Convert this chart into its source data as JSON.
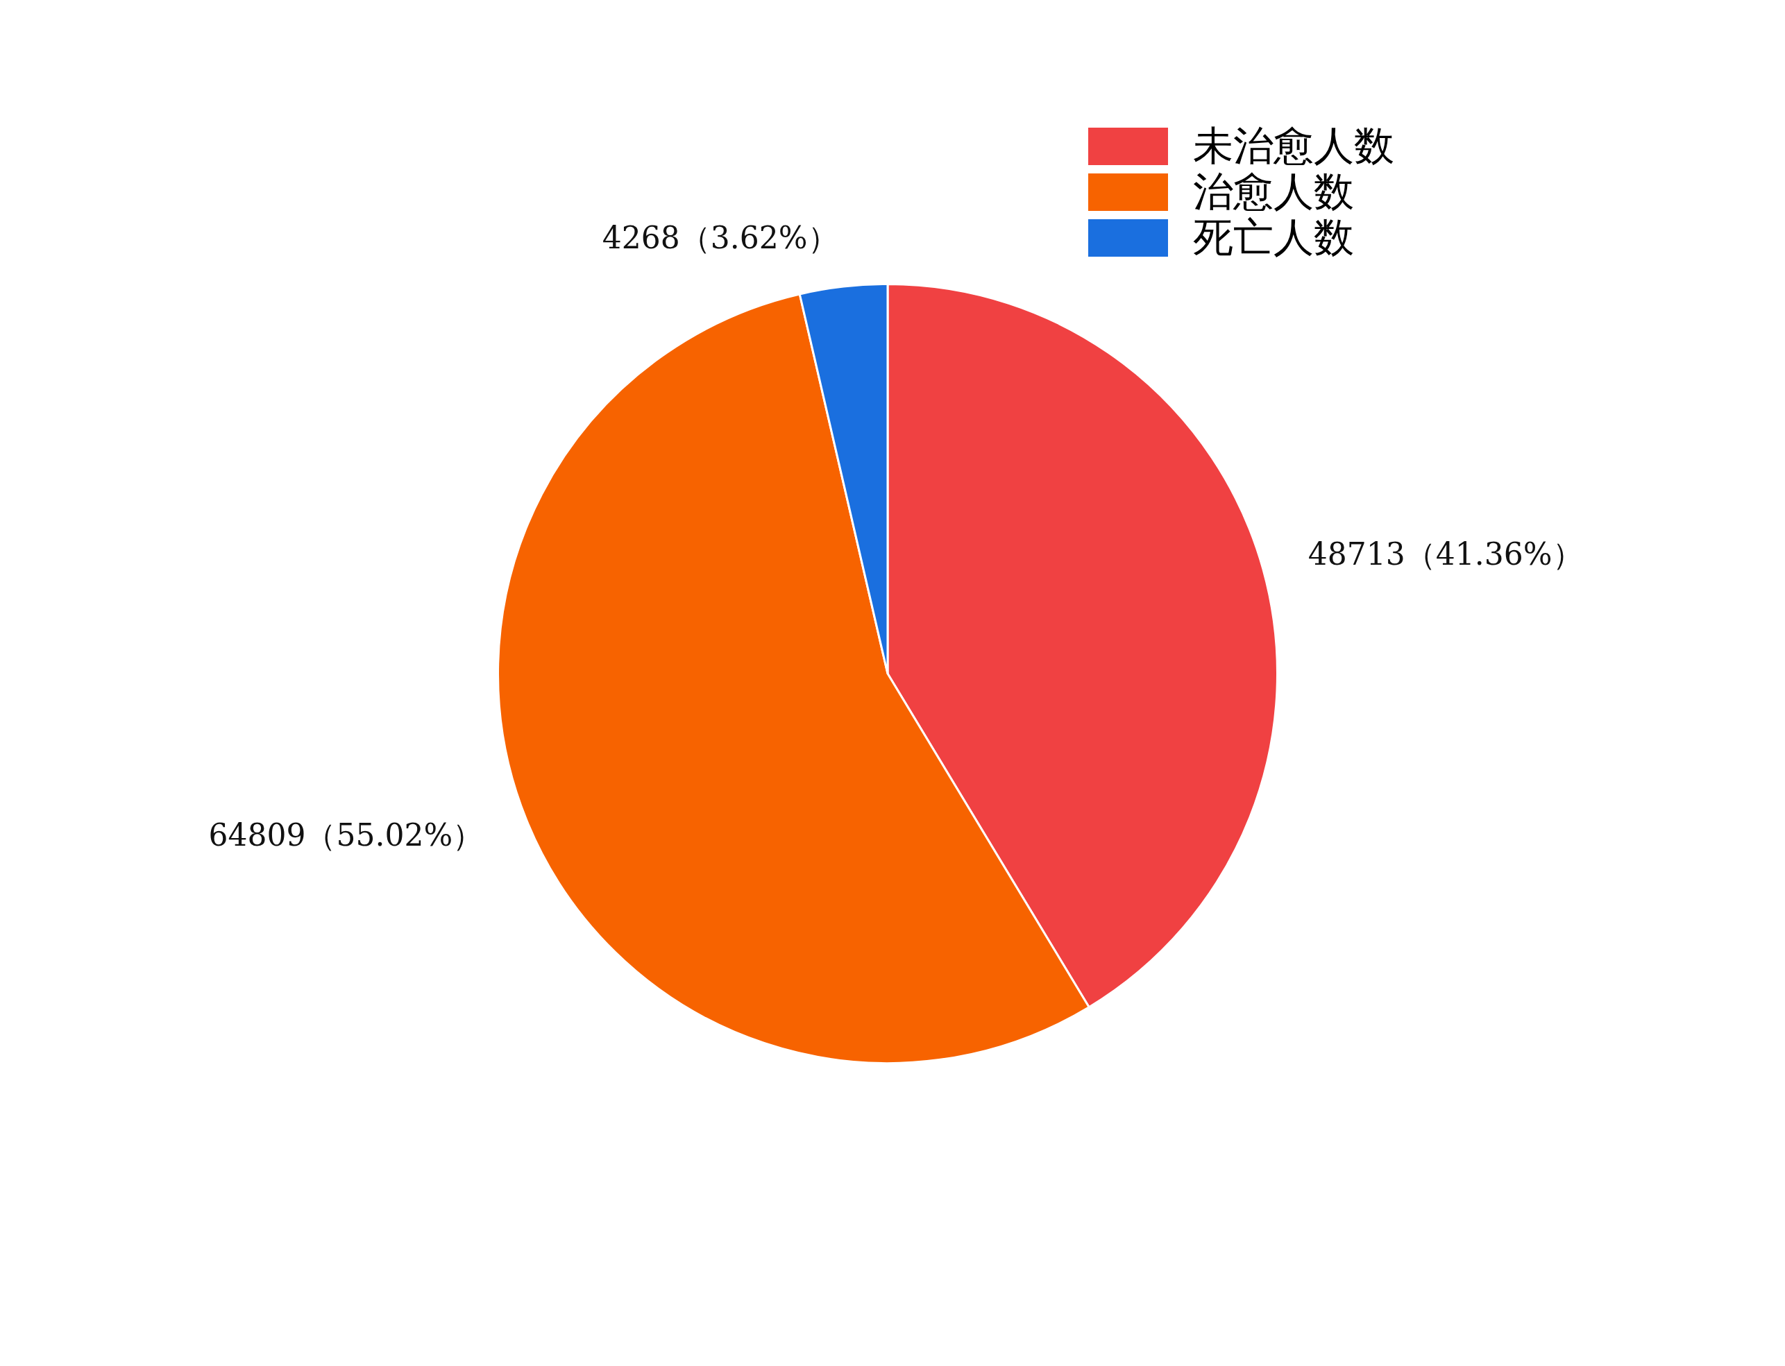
{
  "chart_data": {
    "type": "pie",
    "categories": [
      "未治愈人数",
      "治愈人数",
      "死亡人数"
    ],
    "values": [
      48713,
      64809,
      4268
    ],
    "colors": [
      "#f04142",
      "#f76300",
      "#1a6fdf"
    ],
    "value_labels": [
      "48713（41.36%）",
      "64809（55.02%）",
      "4268（3.62%）"
    ],
    "legend": "top right"
  }
}
